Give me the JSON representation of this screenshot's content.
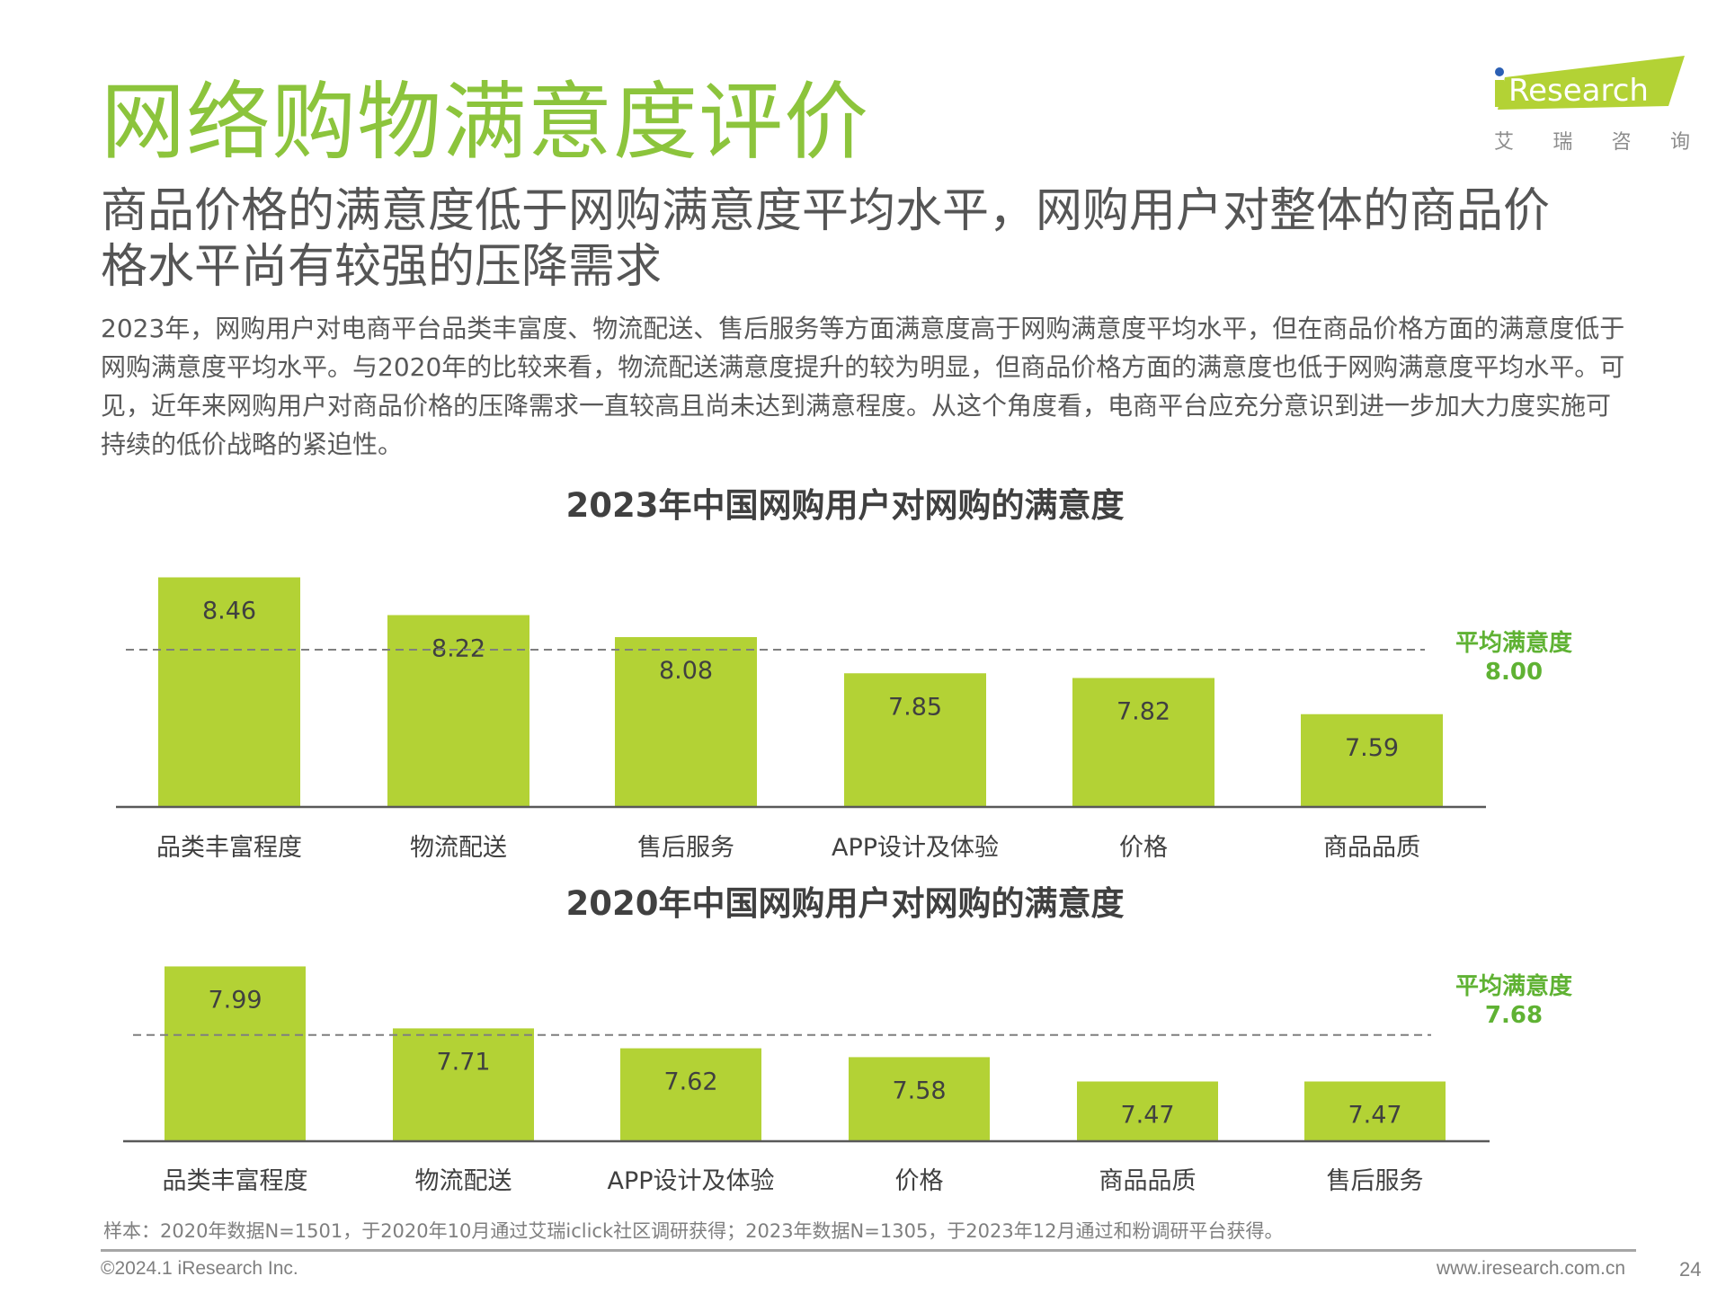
{
  "header": {
    "title": "网络购物满意度评价",
    "subtitle_line1": "商品价格的满意度低于网购满意度平均水平，网购用户对整体的商品价",
    "subtitle_line2": "格水平尚有较强的压降需求",
    "body": "2023年，网购用户对电商平台品类丰富度、物流配送、售后服务等方面满意度高于网购满意度平均水平，但在商品价格方面的满意度低于网购满意度平均水平。与2020年的比较来看，物流配送满意度提升的较为明显，但商品价格方面的满意度也低于网购满意度平均水平。可见，近年来网购用户对商品价格的压降需求一直较高且尚未达到满意程度。从这个角度看，电商平台应充分意识到进一步加大力度实施可持续的低价战略的紧迫性。"
  },
  "logo": {
    "text": "iResearch",
    "cn_chars": [
      "艾",
      "瑞",
      "咨",
      "询"
    ],
    "brand_color": "#b3d235",
    "dot_color": "#2b5fb4"
  },
  "chart_data": [
    {
      "type": "bar",
      "title": "2023年中国网购用户对网购的满意度",
      "categories": [
        "品类丰富程度",
        "物流配送",
        "售后服务",
        "APP设计及体验",
        "价格",
        "商品品质"
      ],
      "values": [
        8.46,
        8.22,
        8.08,
        7.85,
        7.82,
        7.59
      ],
      "value_labels": [
        "8.46",
        "8.22",
        "8.08",
        "7.85",
        "7.82",
        "7.59"
      ],
      "reference_line": {
        "label": "平均满意度",
        "value": 8.0,
        "value_label": "8.00"
      },
      "ylim": [
        7.0,
        8.6
      ],
      "bar_color": "#b3d235",
      "xlabel": "",
      "ylabel": "",
      "grid": false
    },
    {
      "type": "bar",
      "title": "2020年中国网购用户对网购的满意度",
      "categories": [
        "品类丰富程度",
        "物流配送",
        "APP设计及体验",
        "价格",
        "商品品质",
        "售后服务"
      ],
      "values": [
        7.99,
        7.71,
        7.62,
        7.58,
        7.47,
        7.47
      ],
      "value_labels": [
        "7.99",
        "7.71",
        "7.62",
        "7.58",
        "7.47",
        "7.47"
      ],
      "reference_line": {
        "label": "平均满意度",
        "value": 7.68,
        "value_label": "7.68"
      },
      "ylim": [
        7.2,
        8.0
      ],
      "bar_color": "#b3d235",
      "xlabel": "",
      "ylabel": "",
      "grid": false
    }
  ],
  "footer": {
    "source": "样本：2020年数据N=1501，于2020年10月通过艾瑞iclick社区调研获得；2023年数据N=1305，于2023年12月通过和粉调研平台获得。",
    "copyright": "©2024.1 iResearch Inc.",
    "website": "www.iresearch.com.cn",
    "page_number": "24"
  }
}
